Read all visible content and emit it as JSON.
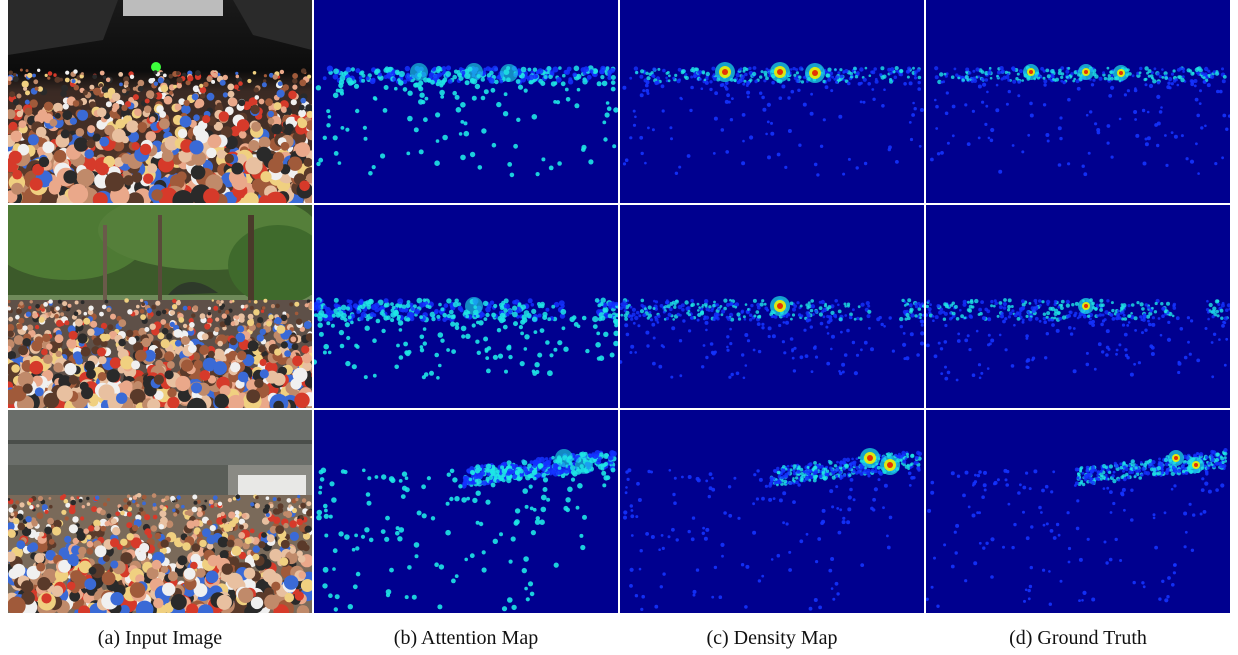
{
  "figure": {
    "captions": [
      "(a) Input Image",
      "(b) Attention Map",
      "(c) Density Map",
      "(d) Ground Truth"
    ],
    "rows": [
      {
        "scene": "concert crowd under stage lights"
      },
      {
        "scene": "park crowd seated under trees"
      },
      {
        "scene": "crowd in courtyard next to building"
      }
    ],
    "colors": {
      "map_background": "#00008f",
      "low": "#1433ff",
      "mid": "#1ee6e6",
      "high": "#f0f000",
      "peak": "#e61e00"
    }
  }
}
